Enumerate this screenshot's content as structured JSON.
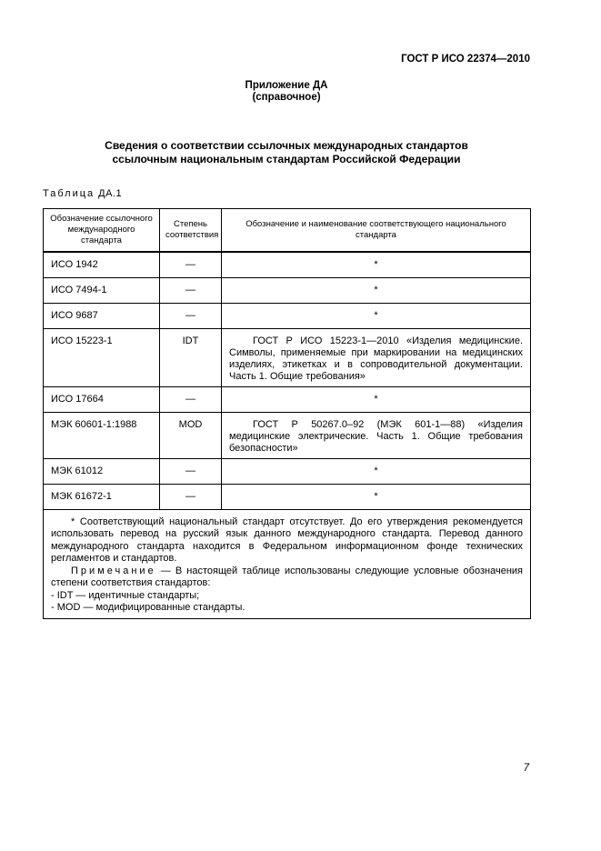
{
  "page": {
    "header_right": "ГОСТ Р ИСО 22374—2010",
    "appendix_heading": "Приложение ДА",
    "appendix_subheading": "(справочное)",
    "title_line1": "Сведения о соответствии ссылочных международных стандартов",
    "title_line2": "ссылочным национальным стандартам Российской Федерации",
    "page_number": "7"
  },
  "table": {
    "label_word": "Таблица",
    "label_number": "ДА.1",
    "columns": [
      "Обозначение ссылочного международного стандарта",
      "Степень соответствия",
      "Обозначение и наименование соответствующего национального стандарта"
    ],
    "rows": [
      {
        "standard": "ИСО 1942",
        "degree": "—",
        "national": "*"
      },
      {
        "standard": "ИСО 7494-1",
        "degree": "—",
        "national": "*"
      },
      {
        "standard": "ИСО 9687",
        "degree": "—",
        "national": "*"
      },
      {
        "standard": "ИСО 15223-1",
        "degree": "IDT",
        "national": "ГОСТ Р ИСО 15223-1—2010 «Изделия медицинские. Символы, применяемые при маркировании на медицинских изделиях, этикетках и в сопроводительной документации. Часть 1. Общие требования»"
      },
      {
        "standard": "ИСО 17664",
        "degree": "—",
        "national": "*"
      },
      {
        "standard": "МЭК 60601-1:1988",
        "degree": "MOD",
        "national": "ГОСТ Р 50267.0–92 (МЭК 601-1—88) «Изделия медицинские электрические. Часть 1. Общие требования безопасности»"
      },
      {
        "standard": "МЭК 61012",
        "degree": "—",
        "national": "*"
      },
      {
        "standard": "МЭК 61672-1",
        "degree": "—",
        "national": "*"
      }
    ],
    "footnote": "* Соответствующий национальный стандарт отсутствует. До его утверждения рекомендуется использовать перевод на русский язык данного международного стандарта. Перевод данного международного стандарта находится в Федеральном информационном фонде технических регламентов и стандартов.",
    "note_label": "Примечание",
    "note_text": "— В настоящей таблице использованы следующие условные обозначения степени соответствия стандартов:",
    "note_items": [
      "- IDT — идентичные стандарты;",
      "- MOD — модифицированные стандарты."
    ]
  }
}
